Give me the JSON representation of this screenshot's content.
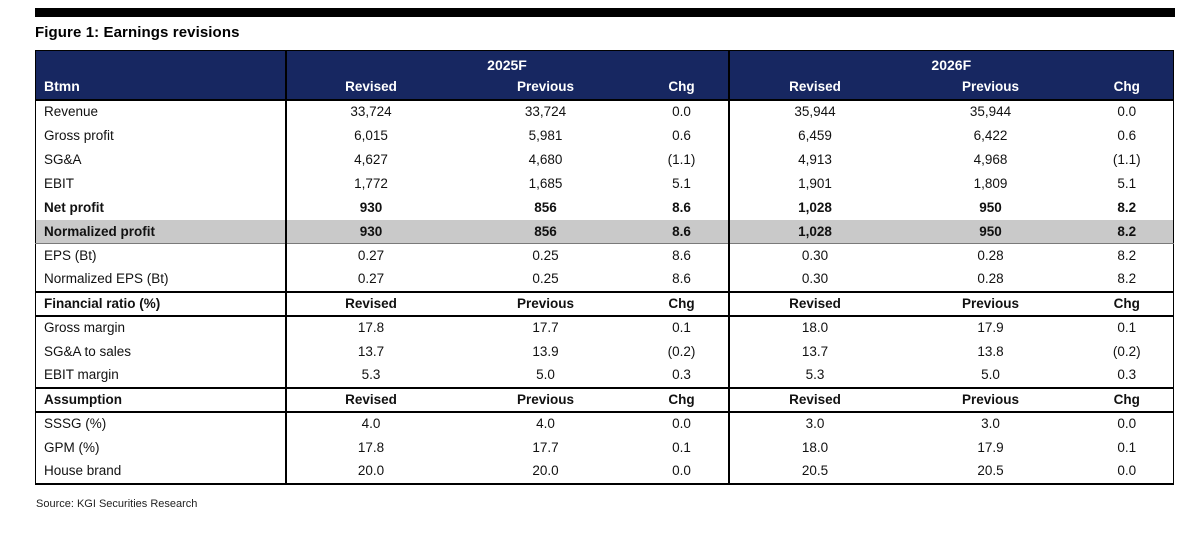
{
  "figure": {
    "title": "Figure 1: Earnings revisions",
    "source": "Source: KGI Securities Research"
  },
  "colors": {
    "header_bg": "#172761",
    "header_text": "#FFFFFF",
    "highlight_row_bg": "#C9C9C9",
    "border": "#000000"
  },
  "table": {
    "corner_label": "Btmn",
    "groups": [
      {
        "label": "2025F"
      },
      {
        "label": "2026F"
      }
    ],
    "subheaders": [
      "Revised",
      "Previous",
      "Chg"
    ],
    "rows": [
      {
        "label": "Revenue",
        "type": "normal",
        "values": [
          "33,724",
          "33,724",
          "0.0",
          "35,944",
          "35,944",
          "0.0"
        ]
      },
      {
        "label": "Gross profit",
        "type": "normal",
        "values": [
          "6,015",
          "5,981",
          "0.6",
          "6,459",
          "6,422",
          "0.6"
        ]
      },
      {
        "label": "SG&A",
        "type": "normal",
        "values": [
          "4,627",
          "4,680",
          "(1.1)",
          "4,913",
          "4,968",
          "(1.1)"
        ]
      },
      {
        "label": "EBIT",
        "type": "normal",
        "values": [
          "1,772",
          "1,685",
          "5.1",
          "1,901",
          "1,809",
          "5.1"
        ]
      },
      {
        "label": "Net profit",
        "type": "bold",
        "values": [
          "930",
          "856",
          "8.6",
          "1,028",
          "950",
          "8.2"
        ]
      },
      {
        "label": "Normalized profit",
        "type": "bold highlight",
        "values": [
          "930",
          "856",
          "8.6",
          "1,028",
          "950",
          "8.2"
        ]
      },
      {
        "label": "EPS (Bt)",
        "type": "normal",
        "values": [
          "0.27",
          "0.25",
          "8.6",
          "0.30",
          "0.28",
          "8.2"
        ]
      },
      {
        "label": "Normalized EPS (Bt)",
        "type": "normal",
        "values": [
          "0.27",
          "0.25",
          "8.6",
          "0.30",
          "0.28",
          "8.2"
        ]
      },
      {
        "label": "Financial ratio (%)",
        "type": "section",
        "values": [
          "Revised",
          "Previous",
          "Chg",
          "Revised",
          "Previous",
          "Chg"
        ]
      },
      {
        "label": "Gross margin",
        "type": "normal",
        "values": [
          "17.8",
          "17.7",
          "0.1",
          "18.0",
          "17.9",
          "0.1"
        ]
      },
      {
        "label": "SG&A to sales",
        "type": "normal",
        "values": [
          "13.7",
          "13.9",
          "(0.2)",
          "13.7",
          "13.8",
          "(0.2)"
        ]
      },
      {
        "label": "EBIT margin",
        "type": "normal",
        "values": [
          "5.3",
          "5.0",
          "0.3",
          "5.3",
          "5.0",
          "0.3"
        ]
      },
      {
        "label": "Assumption",
        "type": "section",
        "values": [
          "Revised",
          "Previous",
          "Chg",
          "Revised",
          "Previous",
          "Chg"
        ]
      },
      {
        "label": "SSSG (%)",
        "type": "normal",
        "values": [
          "4.0",
          "4.0",
          "0.0",
          "3.0",
          "3.0",
          "0.0"
        ]
      },
      {
        "label": "GPM (%)",
        "type": "normal",
        "values": [
          "17.8",
          "17.7",
          "0.1",
          "18.0",
          "17.9",
          "0.1"
        ]
      },
      {
        "label": "House brand",
        "type": "normal",
        "values": [
          "20.0",
          "20.0",
          "0.0",
          "20.5",
          "20.5",
          "0.0"
        ]
      }
    ]
  }
}
